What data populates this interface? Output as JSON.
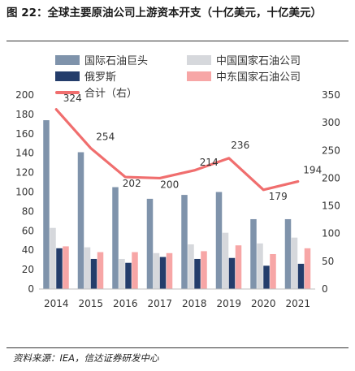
{
  "title": "图 22：全球主要原油公司上游资本开支（十亿美元，十亿美元）",
  "source": "资料来源：IEA，信达证券研发中心",
  "colors": {
    "intl": "#7f93ab",
    "china": "#d6d8dc",
    "russia": "#243d6b",
    "mideast": "#f7a6a6",
    "total": "#f06e6e"
  },
  "chart_data": {
    "type": "bar",
    "categories": [
      "2014",
      "2015",
      "2016",
      "2017",
      "2018",
      "2019",
      "2020",
      "2021"
    ],
    "series": [
      {
        "name": "国际石油巨头",
        "axis": "left",
        "values": [
          174,
          141,
          105,
          93,
          97,
          100,
          72,
          72
        ]
      },
      {
        "name": "中国国家石油公司",
        "axis": "left",
        "values": [
          63,
          43,
          31,
          37,
          46,
          58,
          47,
          53
        ]
      },
      {
        "name": "俄罗斯",
        "axis": "left",
        "values": [
          42,
          31,
          27,
          33,
          31,
          32,
          24,
          26
        ]
      },
      {
        "name": "中东国家石油公司",
        "axis": "left",
        "values": [
          44,
          38,
          38,
          37,
          39,
          45,
          36,
          42
        ]
      },
      {
        "name": "合计（右）",
        "axis": "right",
        "type": "line",
        "values": [
          324,
          254,
          202,
          200,
          214,
          236,
          179,
          194
        ]
      }
    ],
    "y_left": {
      "min": 0,
      "max": 200,
      "ticks": [
        0,
        20,
        40,
        60,
        80,
        100,
        120,
        140,
        160,
        180,
        200
      ]
    },
    "y_right": {
      "min": 0,
      "max": 350,
      "ticks": [
        0,
        50,
        100,
        150,
        200,
        250,
        300,
        350
      ]
    },
    "data_labels": [
      "324",
      "254",
      "202",
      "200",
      "214",
      "236",
      "179",
      "194"
    ],
    "legend_position": "top"
  }
}
